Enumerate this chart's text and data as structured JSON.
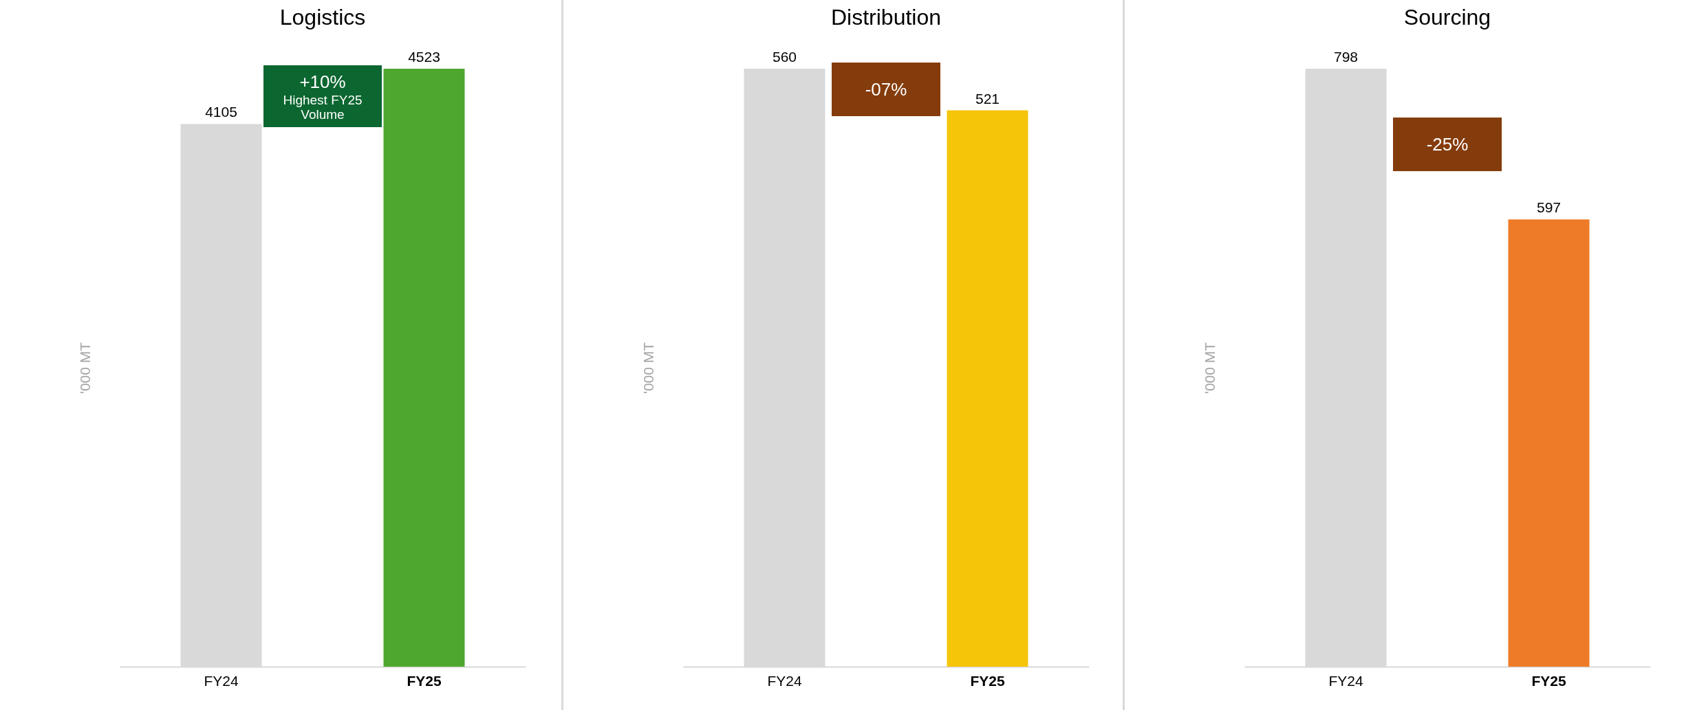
{
  "chart_data": [
    {
      "type": "bar",
      "title": "Logistics",
      "ylabel": "'000 MT",
      "categories": [
        "FY24",
        "FY25"
      ],
      "values": [
        4105,
        4523
      ],
      "colors": [
        "#d9d9d9",
        "#4ea72e"
      ],
      "data_labels": true,
      "annotations": [
        "+10%",
        "Highest FY25 Volume"
      ]
    },
    {
      "type": "bar",
      "title": "Distribution",
      "ylabel": "'000 MT",
      "categories": [
        "FY24",
        "FY25"
      ],
      "values": [
        560,
        521
      ],
      "colors": [
        "#d9d9d9",
        "#f5c50a"
      ],
      "data_labels": true,
      "annotations": [
        "-07%"
      ]
    },
    {
      "type": "bar",
      "title": "Sourcing",
      "ylabel": "'000 MT",
      "categories": [
        "FY24",
        "FY25"
      ],
      "values": [
        798,
        597
      ],
      "colors": [
        "#d9d9d9",
        "#ee7b27"
      ],
      "data_labels": true,
      "annotations": [
        "-25%"
      ]
    }
  ]
}
